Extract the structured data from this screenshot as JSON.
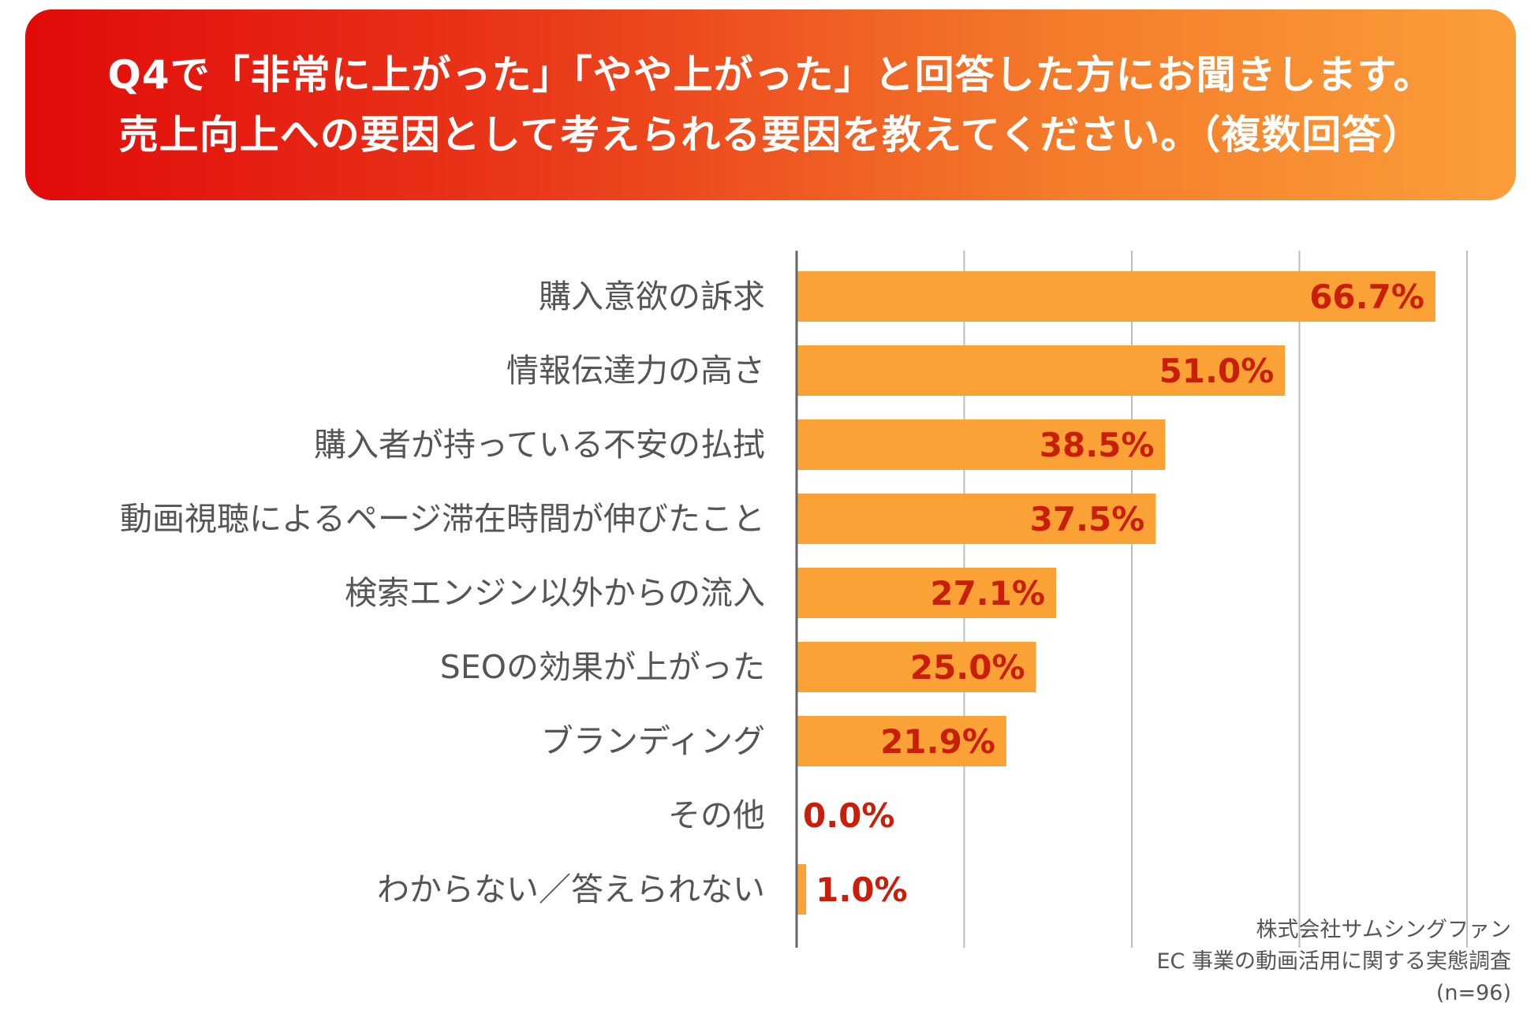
{
  "header": {
    "line1": "Q4で「非常に上がった」「やや上がった」と回答した方にお聞きします。",
    "line2": "売上向上への要因として考えられる要因を教えてください。（複数回答）"
  },
  "colors": {
    "bar": "#fba236",
    "value_text": "#c81e0a",
    "label_text": "#555555",
    "grid": "#bdbdbd",
    "axis": "#666666"
  },
  "chart_data": {
    "type": "bar",
    "orientation": "horizontal",
    "categories": [
      "購入意欲の訴求",
      "情報伝達力の高さ",
      "購入者が持っている不安の払拭",
      "動画視聴によるページ滞在時間が伸びたこと",
      "検索エンジン以外からの流入",
      "SEOの効果が上がった",
      "ブランディング",
      "その他",
      "わからない／答えられない"
    ],
    "values": [
      66.7,
      51.0,
      38.5,
      37.5,
      27.1,
      25.0,
      21.9,
      0.0,
      1.0
    ],
    "value_labels": [
      "66.7%",
      "51.0%",
      "38.5%",
      "37.5%",
      "27.1%",
      "25.0%",
      "21.9%",
      "0.0%",
      "1.0%"
    ],
    "xlim": [
      0,
      70
    ],
    "gridlines": [
      0,
      17.5,
      35,
      52.5,
      70
    ],
    "grid": true,
    "unit": "%"
  },
  "source": {
    "line1": "株式会社サムシングファン",
    "line2": "EC 事業の動画活用に関する実態調査",
    "line3": "(n=96)"
  }
}
